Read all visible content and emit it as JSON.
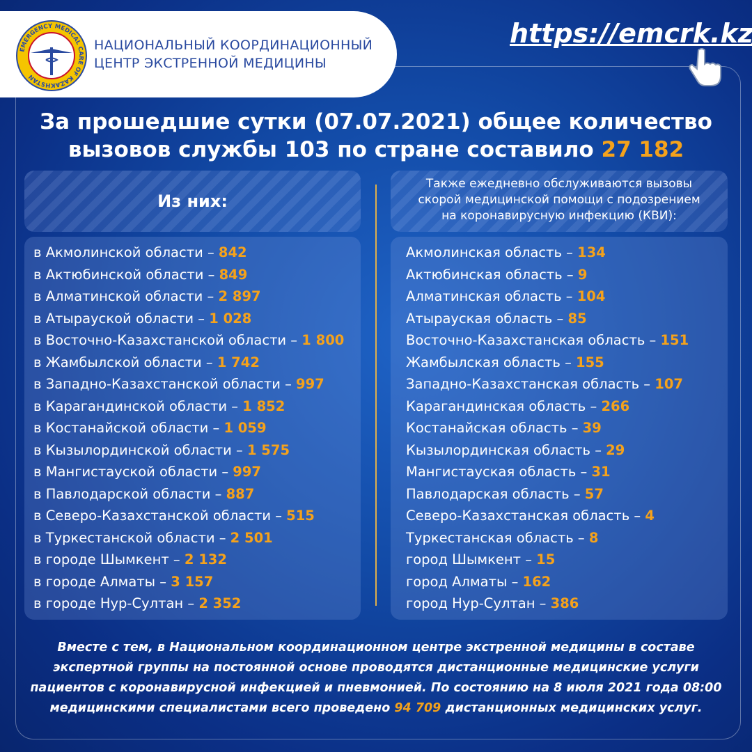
{
  "header": {
    "org_name": [
      "НАЦИОНАЛЬНЫЙ КООРДИНАЦИОННЫЙ",
      "ЦЕНТР ЭКСТРЕННОЙ МЕДИЦИНЫ"
    ],
    "logo_text": "EMERGENCY MEDICAL CARE OF KAZAKHSTAN",
    "url": "https://emcrk.kz/"
  },
  "headline": {
    "line1": "За прошедшие сутки (07.07.2021) общее количество",
    "line2": "вызовов службы 103 по стране составило",
    "total": "27 182"
  },
  "left": {
    "heading": "Из них:",
    "rows": [
      {
        "label": "в Акмолинской области –",
        "value": "842"
      },
      {
        "label": "в Актюбинской области –",
        "value": "849"
      },
      {
        "label": "в Алматинской области –",
        "value": "2 897"
      },
      {
        "label": "в Атырауской области –",
        "value": "1 028"
      },
      {
        "label": "в Восточно-Казахстанской области –",
        "value": "1 800"
      },
      {
        "label": "в Жамбылской области –",
        "value": "1 742"
      },
      {
        "label": "в Западно-Казахстанской области –",
        "value": "997"
      },
      {
        "label": "в Карагандинской области –",
        "value": "1 852"
      },
      {
        "label": "в Костанайской области –",
        "value": "1 059"
      },
      {
        "label": "в Кызылординской области –",
        "value": "1 575"
      },
      {
        "label": "в Мангистауской области –",
        "value": "997"
      },
      {
        "label": "в Павлодарской области –",
        "value": "887"
      },
      {
        "label": "в Северо-Казахстанской области –",
        "value": "515"
      },
      {
        "label": "в Туркестанской области –",
        "value": "2 501"
      },
      {
        "label": "в городе Шымкент –",
        "value": "2 132"
      },
      {
        "label": "в городе Алматы –",
        "value": "3 157"
      },
      {
        "label": "в городе Нур-Султан –",
        "value": "2 352"
      }
    ]
  },
  "right": {
    "heading": [
      "Также ежедневно обслуживаются вызовы",
      "скорой медицинской помощи с подозрением",
      "на коронавирусную инфекцию (КВИ):"
    ],
    "rows": [
      {
        "label": "Акмолинская область –",
        "value": "134"
      },
      {
        "label": "Актюбинская область –",
        "value": "9"
      },
      {
        "label": "Алматинская область –",
        "value": "104"
      },
      {
        "label": "Атырауская область –",
        "value": "85"
      },
      {
        "label": "Восточно-Казахстанская область –",
        "value": "151"
      },
      {
        "label": "Жамбылская область –",
        "value": "155"
      },
      {
        "label": "Западно-Казахстанская область –",
        "value": "107"
      },
      {
        "label": "Карагандинская область –",
        "value": "266"
      },
      {
        "label": "Костанайская область –",
        "value": "39"
      },
      {
        "label": "Кызылординская область –",
        "value": "29"
      },
      {
        "label": "Мангистауская область –",
        "value": "31"
      },
      {
        "label": "Павлодарская область –",
        "value": "57"
      },
      {
        "label": "Северо-Казахстанская область –",
        "value": "4"
      },
      {
        "label": "Туркестанская область –",
        "value": "8"
      },
      {
        "label": "город Шымкент –",
        "value": "15"
      },
      {
        "label": "город Алматы –",
        "value": "162"
      },
      {
        "label": "город Нур-Султан –",
        "value": "386"
      }
    ]
  },
  "footer": {
    "line1": "Вместе с тем, в Национальном координационном центре экстренной медицины в составе",
    "line2": "экспертной группы на постоянной основе проводятся дистанционные медицинские услуги",
    "line3": "пациентов с коронавирусной инфекцией и пневмонией. По состоянию на 8 июля 2021 года 08:00",
    "line4_before": "медицинскими специалистами всего проведено",
    "value": "94 709",
    "line4_after": "дистанционных медицинских услуг."
  }
}
